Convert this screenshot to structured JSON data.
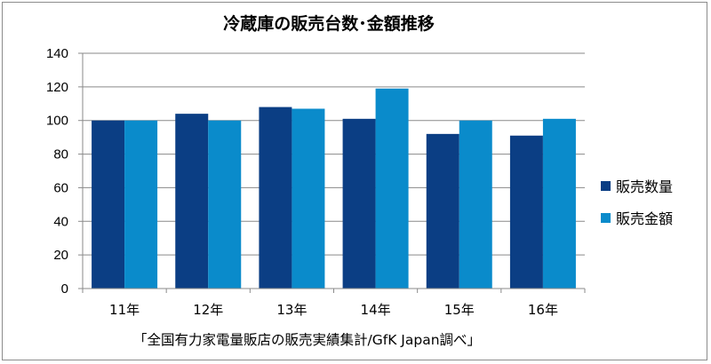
{
  "chart_data": {
    "type": "bar",
    "title": "冷蔵庫の販売台数･金額推移",
    "categories": [
      "11年",
      "12年",
      "13年",
      "14年",
      "15年",
      "16年"
    ],
    "series": [
      {
        "name": "販売数量",
        "values": [
          100,
          104,
          108,
          101,
          92,
          91
        ],
        "color": "#0b3e84"
      },
      {
        "name": "販売金額",
        "values": [
          100,
          100,
          107,
          119,
          100,
          101
        ],
        "color": "#0a8bcb"
      }
    ],
    "yticks": [
      "0",
      "20",
      "40",
      "60",
      "80",
      "100",
      "120",
      "140"
    ],
    "ylim": [
      0,
      140
    ],
    "grid": true,
    "legend_position": "right"
  },
  "source_note": "「全国有力家電量販店の販売実績集計/GfK Japan調べ」"
}
